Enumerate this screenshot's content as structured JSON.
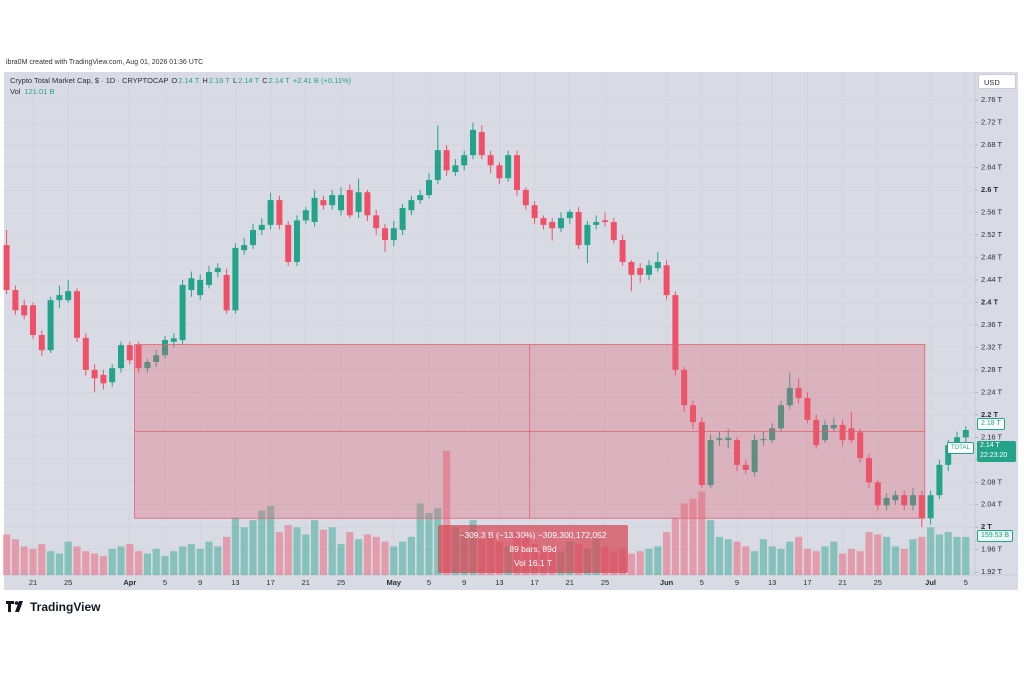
{
  "chart_data": {
    "type": "candlestick",
    "title": "Crypto Total Market Cap, $ · 1D · CRYPTOCAP",
    "categories": [
      null,
      null,
      null,
      "21",
      null,
      null,
      null,
      "25",
      null,
      null,
      null,
      null,
      null,
      null,
      "Apr",
      null,
      null,
      null,
      "5",
      null,
      null,
      null,
      "9",
      null,
      null,
      null,
      "13",
      null,
      null,
      null,
      "17",
      null,
      null,
      null,
      "21",
      null,
      null,
      null,
      "25",
      null,
      null,
      null,
      null,
      null,
      "May",
      null,
      null,
      null,
      "5",
      null,
      null,
      null,
      "9",
      null,
      null,
      null,
      "13",
      null,
      null,
      null,
      "17",
      null,
      null,
      null,
      "21",
      null,
      null,
      null,
      "25",
      null,
      null,
      null,
      null,
      null,
      null,
      "Jun",
      null,
      null,
      null,
      "5",
      null,
      null,
      null,
      "9",
      null,
      null,
      null,
      "13",
      null,
      null,
      null,
      "17",
      null,
      null,
      null,
      "21",
      null,
      null,
      null,
      "25",
      null,
      null,
      null,
      null,
      null,
      "Jul",
      null,
      null,
      null,
      "5"
    ],
    "open": [
      2.502,
      2.422,
      2.395,
      2.395,
      2.342,
      2.315,
      2.404,
      2.404,
      2.42,
      2.337,
      2.28,
      2.271,
      2.258,
      2.283,
      2.324,
      2.324,
      2.283,
      2.294,
      2.306,
      2.33,
      2.333,
      2.422,
      2.413,
      2.431,
      2.454,
      2.449,
      2.386,
      2.493,
      2.502,
      2.529,
      2.538,
      2.582,
      2.538,
      2.472,
      2.546,
      2.543,
      2.582,
      2.573,
      2.564,
      2.6,
      2.561,
      2.596,
      2.555,
      2.532,
      2.511,
      2.529,
      2.564,
      2.582,
      2.591,
      2.618,
      2.671,
      2.632,
      2.644,
      2.662,
      2.703,
      2.662,
      2.644,
      2.621,
      2.662,
      2.6,
      2.573,
      2.55,
      2.543,
      2.532,
      2.55,
      2.561,
      2.502,
      2.538,
      2.546,
      2.543,
      2.511,
      2.472,
      2.461,
      2.449,
      2.461,
      2.466,
      2.413,
      2.28,
      2.217,
      2.187,
      2.075,
      2.155,
      2.155,
      2.155,
      2.111,
      2.098,
      2.155,
      2.155,
      2.176,
      2.217,
      2.248,
      2.23,
      2.191,
      2.155,
      2.176,
      2.182,
      2.176,
      2.169,
      2.123,
      2.08,
      2.039,
      2.048,
      2.057,
      2.039,
      2.057,
      2.016,
      2.057,
      2.111,
      2.146,
      2.16
    ],
    "high": [
      2.529,
      2.43,
      2.405,
      2.4,
      2.35,
      2.41,
      2.43,
      2.44,
      2.425,
      2.345,
      2.29,
      2.28,
      2.29,
      2.33,
      2.33,
      2.33,
      2.3,
      2.315,
      2.34,
      2.345,
      2.44,
      2.455,
      2.45,
      2.465,
      2.47,
      2.46,
      2.505,
      2.515,
      2.54,
      2.55,
      2.595,
      2.59,
      2.545,
      2.555,
      2.57,
      2.6,
      2.59,
      2.6,
      2.605,
      2.61,
      2.62,
      2.6,
      2.565,
      2.54,
      2.545,
      2.575,
      2.59,
      2.6,
      2.63,
      2.715,
      2.68,
      2.655,
      2.67,
      2.72,
      2.715,
      2.67,
      2.65,
      2.67,
      2.67,
      2.605,
      2.58,
      2.555,
      2.55,
      2.56,
      2.565,
      2.57,
      2.545,
      2.555,
      2.56,
      2.55,
      2.52,
      2.475,
      2.47,
      2.475,
      2.49,
      2.475,
      2.42,
      2.285,
      2.225,
      2.195,
      2.165,
      2.17,
      2.175,
      2.16,
      2.12,
      2.165,
      2.17,
      2.185,
      2.225,
      2.275,
      2.265,
      2.24,
      2.2,
      2.19,
      2.195,
      2.19,
      2.205,
      2.175,
      2.13,
      2.085,
      2.06,
      2.065,
      2.065,
      2.07,
      2.065,
      2.065,
      2.12,
      2.155,
      2.17,
      2.18
    ],
    "low": [
      2.415,
      2.378,
      2.37,
      2.335,
      2.305,
      2.31,
      2.39,
      2.4,
      2.33,
      2.27,
      2.24,
      2.245,
      2.25,
      2.275,
      2.29,
      2.275,
      2.275,
      2.285,
      2.3,
      2.32,
      2.325,
      2.41,
      2.405,
      2.425,
      2.445,
      2.38,
      2.38,
      2.485,
      2.495,
      2.52,
      2.53,
      2.53,
      2.465,
      2.465,
      2.54,
      2.535,
      2.565,
      2.565,
      2.555,
      2.55,
      2.55,
      2.545,
      2.52,
      2.49,
      2.5,
      2.52,
      2.555,
      2.575,
      2.585,
      2.61,
      2.625,
      2.625,
      2.635,
      2.655,
      2.655,
      2.63,
      2.61,
      2.615,
      2.59,
      2.565,
      2.54,
      2.53,
      2.51,
      2.525,
      2.54,
      2.495,
      2.47,
      2.53,
      2.535,
      2.505,
      2.465,
      2.42,
      2.435,
      2.44,
      2.455,
      2.405,
      2.27,
      2.205,
      2.175,
      2.07,
      2.07,
      2.145,
      2.14,
      2.1,
      2.095,
      2.09,
      2.145,
      2.15,
      2.17,
      2.21,
      2.22,
      2.185,
      2.14,
      2.15,
      2.17,
      2.145,
      2.15,
      2.115,
      2.07,
      2.03,
      2.03,
      2.04,
      2.03,
      2.03,
      2.0,
      2.005,
      2.05,
      2.1,
      2.14,
      2.15
    ],
    "close": [
      2.422,
      2.386,
      2.377,
      2.342,
      2.315,
      2.404,
      2.413,
      2.42,
      2.337,
      2.28,
      2.265,
      2.256,
      2.283,
      2.324,
      2.297,
      2.283,
      2.294,
      2.306,
      2.333,
      2.336,
      2.431,
      2.443,
      2.44,
      2.454,
      2.461,
      2.386,
      2.497,
      2.502,
      2.529,
      2.538,
      2.582,
      2.538,
      2.472,
      2.546,
      2.564,
      2.586,
      2.573,
      2.591,
      2.591,
      2.555,
      2.596,
      2.555,
      2.532,
      2.511,
      2.532,
      2.568,
      2.582,
      2.591,
      2.618,
      2.671,
      2.635,
      2.644,
      2.662,
      2.707,
      2.662,
      2.644,
      2.621,
      2.662,
      2.6,
      2.573,
      2.55,
      2.538,
      2.532,
      2.55,
      2.561,
      2.502,
      2.538,
      2.543,
      2.543,
      2.511,
      2.472,
      2.449,
      2.449,
      2.466,
      2.472,
      2.413,
      2.28,
      2.217,
      2.187,
      2.075,
      2.155,
      2.158,
      2.159,
      2.111,
      2.102,
      2.155,
      2.157,
      2.176,
      2.217,
      2.248,
      2.23,
      2.191,
      2.146,
      2.182,
      2.182,
      2.155,
      2.155,
      2.123,
      2.08,
      2.039,
      2.052,
      2.057,
      2.039,
      2.057,
      2.016,
      2.057,
      2.111,
      2.146,
      2.16,
      2.173
    ],
    "volume": [
      170,
      150,
      120,
      110,
      130,
      100,
      90,
      140,
      120,
      100,
      90,
      80,
      110,
      120,
      130,
      100,
      90,
      110,
      80,
      100,
      120,
      130,
      110,
      140,
      120,
      160,
      240,
      200,
      230,
      270,
      290,
      180,
      210,
      200,
      170,
      230,
      190,
      200,
      130,
      180,
      150,
      170,
      160,
      140,
      120,
      140,
      160,
      300,
      260,
      280,
      520,
      200,
      180,
      230,
      150,
      170,
      140,
      120,
      180,
      160,
      130,
      110,
      120,
      100,
      140,
      130,
      110,
      150,
      120,
      100,
      110,
      90,
      100,
      110,
      120,
      180,
      240,
      300,
      320,
      350,
      230,
      160,
      150,
      140,
      120,
      100,
      150,
      120,
      110,
      140,
      160,
      110,
      100,
      120,
      140,
      90,
      110,
      100,
      180,
      170,
      160,
      120,
      110,
      150,
      160,
      200,
      170,
      180,
      160,
      159.53
    ],
    "up_color": "#22a38a",
    "down_color": "#ef5068",
    "ylim": [
      1.915,
      2.81
    ],
    "yticks": [
      {
        "value": 2.76,
        "label": "2.76 T"
      },
      {
        "value": 2.72,
        "label": "2.72 T"
      },
      {
        "value": 2.68,
        "label": "2.68 T"
      },
      {
        "value": 2.64,
        "label": "2.64 T"
      },
      {
        "value": 2.6,
        "label": "2.6 T"
      },
      {
        "value": 2.56,
        "label": "2.56 T"
      },
      {
        "value": 2.52,
        "label": "2.52 T"
      },
      {
        "value": 2.48,
        "label": "2.48 T"
      },
      {
        "value": 2.44,
        "label": "2.44 T"
      },
      {
        "value": 2.4,
        "label": "2.4 T"
      },
      {
        "value": 2.36,
        "label": "2.36 T"
      },
      {
        "value": 2.32,
        "label": "2.32 T"
      },
      {
        "value": 2.28,
        "label": "2.28 T"
      },
      {
        "value": 2.24,
        "label": "2.24 T"
      },
      {
        "value": 2.2,
        "label": "2.2 T"
      },
      {
        "value": 2.16,
        "label": "2.16 T"
      },
      {
        "value": 2.12,
        "label": "2.12 T"
      },
      {
        "value": 2.08,
        "label": "2.08 T"
      },
      {
        "value": 2.04,
        "label": "2.04 T"
      },
      {
        "value": 2,
        "label": "2 T"
      },
      {
        "value": 1.96,
        "label": "1.96 T"
      },
      {
        "value": 1.92,
        "label": "1.92 T"
      }
    ],
    "grid": true,
    "measure": {
      "high": 2.325,
      "low": 2.016,
      "lines": [
        "−309.3 B (−13.30%) −309,300,172,052",
        "89 bars, 89d",
        "Vol 16.1 T"
      ],
      "color": "#e0606f"
    }
  },
  "ui": {
    "credit": "ibra0M created with TradingView.com, Aug 01, 2026 01:36 UTC",
    "legend": [
      "O",
      "2.14 T",
      "H",
      "2.16 T",
      "L",
      "2.14 T",
      "C",
      "2.14 T",
      "+2.41 B (+0.11%)"
    ],
    "volume_label": "Vol",
    "volume_value": "121.01 B",
    "currency": "USD",
    "high_tag": "2.18 T",
    "symbol_tag": "TOTAL",
    "price_tag": "2.14 T",
    "countdown": "22:23:20",
    "volume_tag": "159.53 B",
    "logo": "TradingView"
  }
}
